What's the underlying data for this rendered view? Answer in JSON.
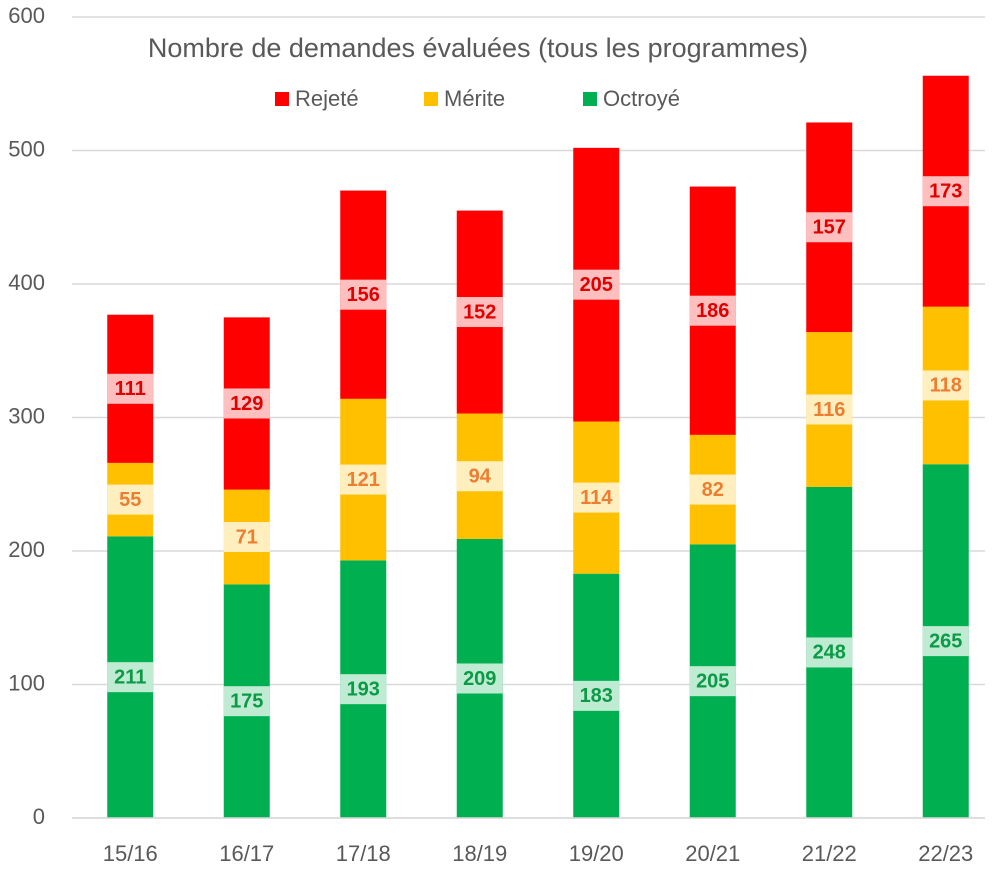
{
  "chart_data": {
    "type": "stacked_bar",
    "title": "Nombre de demandes évaluées (tous les programmes)",
    "categories": [
      "15/16",
      "16/17",
      "17/18",
      "18/19",
      "19/20",
      "20/21",
      "21/22",
      "22/23"
    ],
    "series": [
      {
        "name": "Octroyé",
        "color": "#00b050",
        "label_color": "#0b9a45",
        "values": [
          211,
          175,
          193,
          209,
          183,
          205,
          248,
          265
        ]
      },
      {
        "name": "Mérite",
        "color": "#ffc000",
        "label_color": "#ed7d31",
        "values": [
          55,
          71,
          121,
          94,
          114,
          82,
          116,
          118
        ]
      },
      {
        "name": "Rejeté",
        "color": "#ff0000",
        "label_color": "#e00000",
        "values": [
          111,
          129,
          156,
          152,
          205,
          186,
          157,
          173
        ]
      }
    ],
    "legend_order": [
      2,
      1,
      0
    ],
    "ylim": [
      0,
      600
    ],
    "yticks": [
      0,
      100,
      200,
      300,
      400,
      500,
      600
    ],
    "grid": true
  }
}
